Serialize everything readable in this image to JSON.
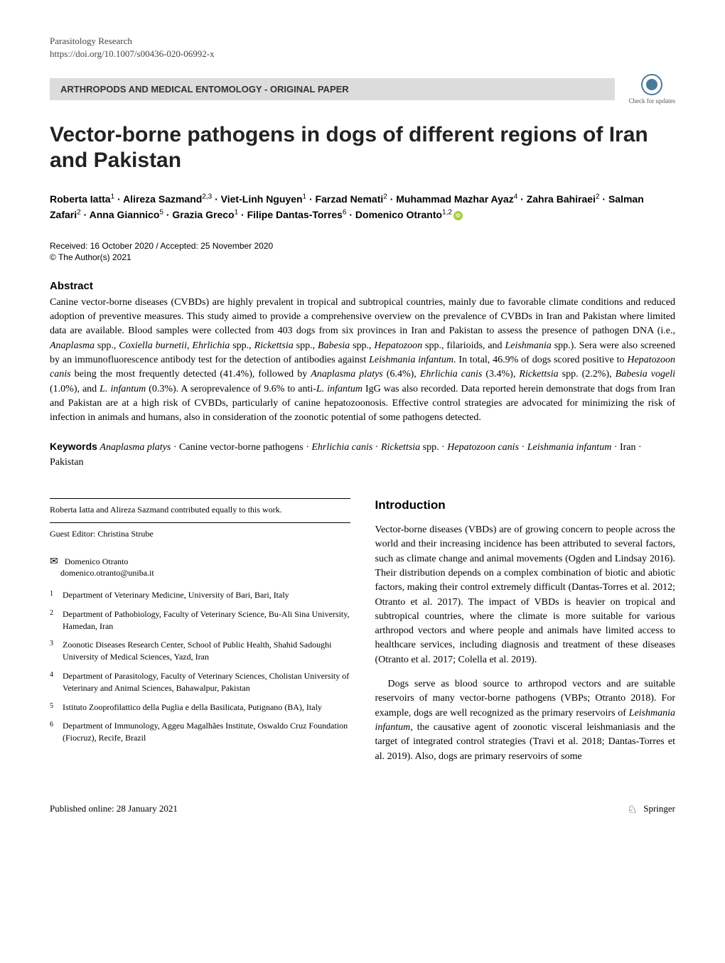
{
  "header": {
    "journal": "Parasitology Research",
    "doi": "https://doi.org/10.1007/s00436-020-06992-x",
    "section": "ARTHROPODS AND MEDICAL ENTOMOLOGY - ORIGINAL PAPER",
    "check_updates_label": "Check for updates"
  },
  "title": "Vector-borne pathogens in dogs of different regions of Iran and Pakistan",
  "authors_html": "Roberta Iatta<sup>1</sup> · Alireza Sazmand<sup>2,3</sup> · Viet-Linh Nguyen<sup>1</sup> · Farzad Nemati<sup>2</sup> · Muhammad Mazhar Ayaz<sup>4</sup> · Zahra Bahiraei<sup>2</sup> · Salman Zafari<sup>2</sup> · Anna Giannico<sup>5</sup> · Grazia Greco<sup>1</sup> · Filipe Dantas-Torres<sup>6</sup> · Domenico Otranto<sup>1,2</sup>",
  "dates": "Received: 16 October 2020 / Accepted: 25 November 2020",
  "copyright": "© The Author(s) 2021",
  "abstract": {
    "label": "Abstract",
    "text": "Canine vector-borne diseases (CVBDs) are highly prevalent in tropical and subtropical countries, mainly due to favorable climate conditions and reduced adoption of preventive measures. This study aimed to provide a comprehensive overview on the prevalence of CVBDs in Iran and Pakistan where limited data are available. Blood samples were collected from 403 dogs from six provinces in Iran and Pakistan to assess the presence of pathogen DNA (i.e., Anaplasma spp., Coxiella burnetii, Ehrlichia spp., Rickettsia spp., Babesia spp., Hepatozoon spp., filarioids, and Leishmania spp.). Sera were also screened by an immunofluorescence antibody test for the detection of antibodies against Leishmania infantum. In total, 46.9% of dogs scored positive to Hepatozoon canis being the most frequently detected (41.4%), followed by Anaplasma platys (6.4%), Ehrlichia canis (3.4%), Rickettsia spp. (2.2%), Babesia vogeli (1.0%), and L. infantum (0.3%). A seroprevalence of 9.6% to anti-L. infantum IgG was also recorded. Data reported herein demonstrate that dogs from Iran and Pakistan are at a high risk of CVBDs, particularly of canine hepatozoonosis. Effective control strategies are advocated for minimizing the risk of infection in animals and humans, also in consideration of the zoonotic potential of some pathogens detected."
  },
  "keywords": {
    "label": "Keywords",
    "text": "Anaplasma platys · Canine vector-borne pathogens · Ehrlichia canis · Rickettsia spp. · Hepatozoon canis · Leishmania infantum · Iran · Pakistan"
  },
  "notes": {
    "contrib": "Roberta Iatta and Alireza Sazmand contributed equally to this work.",
    "guest_editor": "Guest Editor: Christina Strube"
  },
  "correspondence": {
    "name": "Domenico Otranto",
    "email": "domenico.otranto@uniba.it"
  },
  "affiliations": [
    {
      "num": "1",
      "text": "Department of Veterinary Medicine, University of Bari, Bari, Italy"
    },
    {
      "num": "2",
      "text": "Department of Pathobiology, Faculty of Veterinary Science, Bu-Ali Sina University, Hamedan, Iran"
    },
    {
      "num": "3",
      "text": "Zoonotic Diseases Research Center, School of Public Health, Shahid Sadoughi University of Medical Sciences, Yazd, Iran"
    },
    {
      "num": "4",
      "text": "Department of Parasitology, Faculty of Veterinary Sciences, Cholistan University of Veterinary and Animal Sciences, Bahawalpur, Pakistan"
    },
    {
      "num": "5",
      "text": "Istituto Zooprofilattico della Puglia e della Basilicata, Putignano (BA), Italy"
    },
    {
      "num": "6",
      "text": "Department of Immunology, Aggeu Magalhães Institute, Oswaldo Cruz Foundation (Fiocruz), Recife, Brazil"
    }
  ],
  "introduction": {
    "label": "Introduction",
    "paragraphs": [
      "Vector-borne diseases (VBDs) are of growing concern to people across the world and their increasing incidence has been attributed to several factors, such as climate change and animal movements (Ogden and Lindsay 2016). Their distribution depends on a complex combination of biotic and abiotic factors, making their control extremely difficult (Dantas-Torres et al. 2012; Otranto et al. 2017). The impact of VBDs is heavier on tropical and subtropical countries, where the climate is more suitable for various arthropod vectors and where people and animals have limited access to healthcare services, including diagnosis and treatment of these diseases (Otranto et al. 2017; Colella et al. 2019).",
      "Dogs serve as blood source to arthropod vectors and are suitable reservoirs of many vector-borne pathogens (VBPs; Otranto 2018). For example, dogs are well recognized as the primary reservoirs of Leishmania infantum, the causative agent of zoonotic visceral leishmaniasis and the target of integrated control strategies (Travi et al. 2018; Dantas-Torres et al. 2019). Also, dogs are primary reservoirs of some"
    ]
  },
  "footer": {
    "published": "Published online: 28 January 2021",
    "publisher": "Springer"
  }
}
